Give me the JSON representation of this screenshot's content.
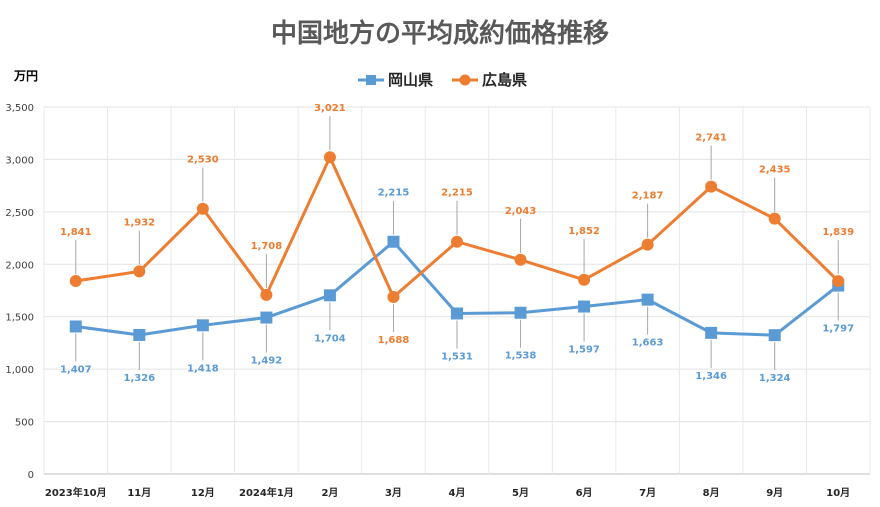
{
  "chart_data": {
    "type": "line",
    "title": "中国地方の平均成約価格推移",
    "ylabel": "万円",
    "xlabel": "",
    "ylim": [
      0,
      3500
    ],
    "yticks": [
      "0",
      "500",
      "1,000",
      "1,500",
      "2,000",
      "2,500",
      "3,000",
      "3,500"
    ],
    "grid": true,
    "legend_position": "top",
    "categories": [
      "2023年10月",
      "11月",
      "12月",
      "2024年1月",
      "2月",
      "3月",
      "4月",
      "5月",
      "6月",
      "7月",
      "8月",
      "9月",
      "10月"
    ],
    "series": [
      {
        "name": "岡山県",
        "color": "#5B9BD5",
        "marker": "square",
        "values": [
          1407,
          1326,
          1418,
          1492,
          1704,
          2215,
          1531,
          1538,
          1597,
          1663,
          1346,
          1324,
          1797
        ],
        "labels": [
          "1,407",
          "1,326",
          "1,418",
          "1,492",
          "1,704",
          "2,215",
          "1,531",
          "1,538",
          "1,597",
          "1,663",
          "1,346",
          "1,324",
          "1,797"
        ]
      },
      {
        "name": "広島県",
        "color": "#ED7D31",
        "marker": "circle",
        "values": [
          1841,
          1932,
          2530,
          1708,
          3021,
          1688,
          2215,
          2043,
          1852,
          2187,
          2741,
          2435,
          1839
        ],
        "labels": [
          "1,841",
          "1,932",
          "2,530",
          "1,708",
          "3,021",
          "1,688",
          "2,215",
          "2,043",
          "1,852",
          "2,187",
          "2,741",
          "2,435",
          "1,839"
        ]
      }
    ]
  }
}
